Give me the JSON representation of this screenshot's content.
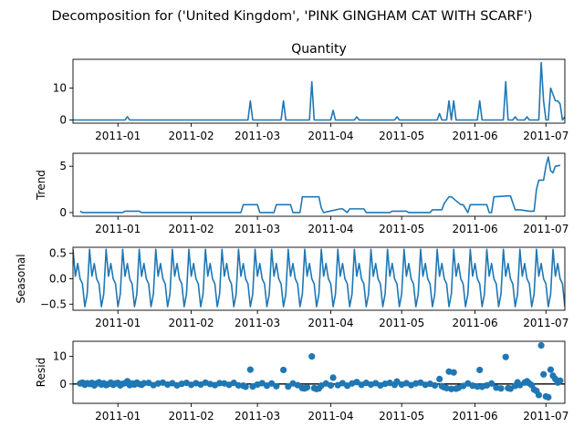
{
  "suptitle": "Decomposition for ('United Kingdom', 'PINK GINGHAM CAT WITH SCARF')",
  "line_color": "#1f77b4",
  "x_range": [
    "2010-12-13",
    "2011-07-09"
  ],
  "x_ticks": [
    {
      "date": "2011-01-01",
      "label": "2011-01"
    },
    {
      "date": "2011-02-01",
      "label": "2011-02"
    },
    {
      "date": "2011-03-01",
      "label": "2011-03"
    },
    {
      "date": "2011-04-01",
      "label": "2011-04"
    },
    {
      "date": "2011-05-01",
      "label": "2011-05"
    },
    {
      "date": "2011-06-01",
      "label": "2011-06"
    },
    {
      "date": "2011-07-01",
      "label": "2011-07"
    }
  ],
  "chart_data": [
    {
      "type": "line",
      "title": "Quantity",
      "ylabel": "",
      "ylim": [
        -1,
        19
      ],
      "yticks": [
        0,
        10
      ],
      "segments": [
        {
          "x": [
            "2010-12-13",
            "2011-01-04",
            "2011-01-05",
            "2011-01-06",
            "2011-02-25",
            "2011-02-26",
            "2011-02-27",
            "2011-03-11",
            "2011-03-12",
            "2011-03-13",
            "2011-03-23",
            "2011-03-24",
            "2011-03-25",
            "2011-04-01",
            "2011-04-02",
            "2011-04-03",
            "2011-04-11",
            "2011-04-12",
            "2011-04-13",
            "2011-04-28",
            "2011-04-29",
            "2011-04-30",
            "2011-05-16",
            "2011-05-17",
            "2011-05-18",
            "2011-05-20",
            "2011-05-21",
            "2011-05-22",
            "2011-05-23",
            "2011-05-24",
            "2011-05-25",
            "2011-06-02",
            "2011-06-03",
            "2011-06-04",
            "2011-06-13",
            "2011-06-14",
            "2011-06-15",
            "2011-06-17",
            "2011-06-18",
            "2011-06-19",
            "2011-06-22",
            "2011-06-23",
            "2011-06-24",
            "2011-06-28",
            "2011-06-29",
            "2011-06-30",
            "2011-07-01",
            "2011-07-02",
            "2011-07-03",
            "2011-07-04",
            "2011-07-05",
            "2011-07-06",
            "2011-07-07",
            "2011-07-08",
            "2011-07-09"
          ],
          "y": [
            0,
            0,
            1,
            0,
            0,
            6,
            0,
            0,
            6,
            0,
            0,
            12,
            0,
            0,
            3,
            0,
            0,
            1,
            0,
            0,
            1,
            0,
            0,
            2,
            0,
            0,
            6,
            0,
            6,
            0,
            0,
            0,
            6,
            0,
            0,
            12,
            0,
            0,
            1,
            0,
            0,
            1,
            0,
            0,
            18,
            6,
            0,
            0,
            10,
            8,
            6,
            6,
            5,
            0,
            1
          ]
        }
      ]
    },
    {
      "type": "line",
      "title": "",
      "ylabel": "Trend",
      "ylim": [
        -0.4,
        6.4
      ],
      "yticks": [
        0,
        5
      ],
      "segments": [
        {
          "x": [
            "2010-12-16",
            "2010-12-17",
            "2011-01-03",
            "2011-01-04",
            "2011-01-10",
            "2011-01-11",
            "2011-02-22",
            "2011-02-23",
            "2011-03-01",
            "2011-03-02",
            "2011-03-08",
            "2011-03-09",
            "2011-03-15",
            "2011-03-16",
            "2011-03-19",
            "2011-03-20",
            "2011-03-27",
            "2011-03-28",
            "2011-03-29",
            "2011-04-05",
            "2011-04-06",
            "2011-04-08",
            "2011-04-09",
            "2011-04-15",
            "2011-04-16",
            "2011-04-26",
            "2011-04-27",
            "2011-05-03",
            "2011-05-04",
            "2011-05-13",
            "2011-05-14",
            "2011-05-18",
            "2011-05-19",
            "2011-05-21",
            "2011-05-22",
            "2011-05-26",
            "2011-05-27",
            "2011-05-29",
            "2011-05-30",
            "2011-06-06",
            "2011-06-07",
            "2011-06-08",
            "2011-06-09",
            "2011-06-15",
            "2011-06-16",
            "2011-06-18",
            "2011-06-20",
            "2011-06-24",
            "2011-06-25",
            "2011-06-26",
            "2011-06-27",
            "2011-06-28",
            "2011-06-29",
            "2011-06-30",
            "2011-07-01",
            "2011-07-02",
            "2011-07-03",
            "2011-07-04",
            "2011-07-05",
            "2011-07-07"
          ],
          "y": [
            0.15,
            0,
            0,
            0.15,
            0.15,
            0,
            0,
            0.85,
            0.85,
            0,
            0,
            0.85,
            0.85,
            0,
            0,
            1.7,
            1.7,
            0.5,
            0,
            0.4,
            0.4,
            0,
            0.4,
            0.4,
            0,
            0,
            0.15,
            0.15,
            0,
            0,
            0.3,
            0.3,
            1.0,
            1.7,
            1.7,
            0.85,
            0.85,
            0,
            0.85,
            0.85,
            0,
            0,
            1.7,
            1.8,
            1.8,
            0.3,
            0.3,
            0.15,
            0.15,
            0.15,
            2.5,
            3.5,
            3.5,
            3.5,
            5.0,
            6.0,
            4.5,
            4.3,
            5.0,
            5.1
          ]
        }
      ]
    },
    {
      "type": "line",
      "title": "",
      "ylabel": "Seasonal",
      "ylim": [
        -0.62,
        0.62
      ],
      "yticks": [
        -0.5,
        0.0,
        0.5
      ],
      "ytick_labels": [
        "−0.5",
        "0.0",
        "0.5"
      ],
      "seasonal_pattern": [
        0.58,
        0.05,
        0.3,
        0.0,
        -0.1,
        -0.55,
        -0.3
      ],
      "seasonal_start": "2010-12-13",
      "seasonal_end": "2011-07-09"
    },
    {
      "type": "scatter",
      "title": "",
      "ylabel": "Resid",
      "ylim": [
        -7,
        15.5
      ],
      "yticks": [
        0,
        10
      ],
      "zero_line": true,
      "points": [
        {
          "x": "2010-12-16",
          "y": 0.2
        },
        {
          "x": "2010-12-17",
          "y": 0.5
        },
        {
          "x": "2010-12-18",
          "y": -0.3
        },
        {
          "x": "2010-12-19",
          "y": 0.3
        },
        {
          "x": "2010-12-20",
          "y": 0.0
        },
        {
          "x": "2010-12-21",
          "y": 0.4
        },
        {
          "x": "2010-12-22",
          "y": -0.5
        },
        {
          "x": "2010-12-23",
          "y": 0.2
        },
        {
          "x": "2010-12-24",
          "y": 0.6
        },
        {
          "x": "2010-12-25",
          "y": -0.2
        },
        {
          "x": "2010-12-26",
          "y": 0.3
        },
        {
          "x": "2010-12-27",
          "y": -0.4
        },
        {
          "x": "2010-12-28",
          "y": 0.0
        },
        {
          "x": "2010-12-29",
          "y": 0.5
        },
        {
          "x": "2010-12-30",
          "y": -0.3
        },
        {
          "x": "2010-12-31",
          "y": 0.2
        },
        {
          "x": "2011-01-01",
          "y": 0.4
        },
        {
          "x": "2011-01-02",
          "y": -0.5
        },
        {
          "x": "2011-01-03",
          "y": 0.1
        },
        {
          "x": "2011-01-04",
          "y": 0.3
        },
        {
          "x": "2011-01-05",
          "y": 1.0
        },
        {
          "x": "2011-01-06",
          "y": -0.4
        },
        {
          "x": "2011-01-07",
          "y": 0.2
        },
        {
          "x": "2011-01-08",
          "y": -0.2
        },
        {
          "x": "2011-01-09",
          "y": 0.5
        },
        {
          "x": "2011-01-10",
          "y": 0.0
        },
        {
          "x": "2011-01-11",
          "y": -0.3
        },
        {
          "x": "2011-01-12",
          "y": 0.3
        },
        {
          "x": "2011-01-14",
          "y": 0.4
        },
        {
          "x": "2011-01-16",
          "y": -0.4
        },
        {
          "x": "2011-01-18",
          "y": 0.2
        },
        {
          "x": "2011-01-20",
          "y": 0.5
        },
        {
          "x": "2011-01-22",
          "y": -0.2
        },
        {
          "x": "2011-01-24",
          "y": 0.3
        },
        {
          "x": "2011-01-26",
          "y": -0.5
        },
        {
          "x": "2011-01-28",
          "y": 0.1
        },
        {
          "x": "2011-01-30",
          "y": 0.4
        },
        {
          "x": "2011-02-01",
          "y": -0.3
        },
        {
          "x": "2011-02-03",
          "y": 0.3
        },
        {
          "x": "2011-02-05",
          "y": -0.2
        },
        {
          "x": "2011-02-07",
          "y": 0.5
        },
        {
          "x": "2011-02-09",
          "y": 0.0
        },
        {
          "x": "2011-02-11",
          "y": -0.4
        },
        {
          "x": "2011-02-13",
          "y": 0.3
        },
        {
          "x": "2011-02-15",
          "y": 0.2
        },
        {
          "x": "2011-02-17",
          "y": -0.3
        },
        {
          "x": "2011-02-19",
          "y": 0.4
        },
        {
          "x": "2011-02-21",
          "y": -0.5
        },
        {
          "x": "2011-02-23",
          "y": -0.6
        },
        {
          "x": "2011-02-24",
          "y": -1.0
        },
        {
          "x": "2011-02-26",
          "y": 5.2
        },
        {
          "x": "2011-02-27",
          "y": -0.9
        },
        {
          "x": "2011-03-01",
          "y": -0.2
        },
        {
          "x": "2011-03-03",
          "y": 0.3
        },
        {
          "x": "2011-03-05",
          "y": -0.6
        },
        {
          "x": "2011-03-07",
          "y": 0.2
        },
        {
          "x": "2011-03-09",
          "y": -0.8
        },
        {
          "x": "2011-03-12",
          "y": 5.1
        },
        {
          "x": "2011-03-14",
          "y": -0.9
        },
        {
          "x": "2011-03-16",
          "y": 0.2
        },
        {
          "x": "2011-03-18",
          "y": -0.4
        },
        {
          "x": "2011-03-20",
          "y": -1.5
        },
        {
          "x": "2011-03-21",
          "y": -1.6
        },
        {
          "x": "2011-03-22",
          "y": -1.2
        },
        {
          "x": "2011-03-24",
          "y": 10.0
        },
        {
          "x": "2011-03-25",
          "y": -1.5
        },
        {
          "x": "2011-03-26",
          "y": -1.8
        },
        {
          "x": "2011-03-27",
          "y": -1.6
        },
        {
          "x": "2011-03-28",
          "y": -0.6
        },
        {
          "x": "2011-03-30",
          "y": 0.2
        },
        {
          "x": "2011-04-01",
          "y": -0.5
        },
        {
          "x": "2011-04-02",
          "y": 2.3
        },
        {
          "x": "2011-04-04",
          "y": -0.4
        },
        {
          "x": "2011-04-06",
          "y": 0.3
        },
        {
          "x": "2011-04-08",
          "y": -0.6
        },
        {
          "x": "2011-04-10",
          "y": 0.2
        },
        {
          "x": "2011-04-12",
          "y": 0.7
        },
        {
          "x": "2011-04-14",
          "y": -0.3
        },
        {
          "x": "2011-04-16",
          "y": 0.4
        },
        {
          "x": "2011-04-18",
          "y": -0.2
        },
        {
          "x": "2011-04-20",
          "y": 0.3
        },
        {
          "x": "2011-04-22",
          "y": -0.5
        },
        {
          "x": "2011-04-24",
          "y": 0.1
        },
        {
          "x": "2011-04-26",
          "y": 0.4
        },
        {
          "x": "2011-04-28",
          "y": -0.3
        },
        {
          "x": "2011-04-29",
          "y": 0.9
        },
        {
          "x": "2011-05-01",
          "y": -0.2
        },
        {
          "x": "2011-05-03",
          "y": 0.3
        },
        {
          "x": "2011-05-05",
          "y": -0.4
        },
        {
          "x": "2011-05-07",
          "y": 0.2
        },
        {
          "x": "2011-05-09",
          "y": 0.5
        },
        {
          "x": "2011-05-11",
          "y": -0.3
        },
        {
          "x": "2011-05-13",
          "y": 0.1
        },
        {
          "x": "2011-05-15",
          "y": -0.5
        },
        {
          "x": "2011-05-17",
          "y": 1.8
        },
        {
          "x": "2011-05-18",
          "y": -0.8
        },
        {
          "x": "2011-05-19",
          "y": -1.2
        },
        {
          "x": "2011-05-20",
          "y": -1.5
        },
        {
          "x": "2011-05-21",
          "y": 4.5
        },
        {
          "x": "2011-05-22",
          "y": -1.8
        },
        {
          "x": "2011-05-23",
          "y": 4.2
        },
        {
          "x": "2011-05-24",
          "y": -1.7
        },
        {
          "x": "2011-05-25",
          "y": -1.4
        },
        {
          "x": "2011-05-27",
          "y": -0.7
        },
        {
          "x": "2011-05-29",
          "y": 0.2
        },
        {
          "x": "2011-05-31",
          "y": -0.6
        },
        {
          "x": "2011-06-02",
          "y": -0.9
        },
        {
          "x": "2011-06-03",
          "y": 5.1
        },
        {
          "x": "2011-06-04",
          "y": -1.0
        },
        {
          "x": "2011-06-06",
          "y": -0.5
        },
        {
          "x": "2011-06-08",
          "y": 0.2
        },
        {
          "x": "2011-06-10",
          "y": -1.3
        },
        {
          "x": "2011-06-12",
          "y": -1.6
        },
        {
          "x": "2011-06-14",
          "y": 9.8
        },
        {
          "x": "2011-06-15",
          "y": -1.5
        },
        {
          "x": "2011-06-16",
          "y": -1.7
        },
        {
          "x": "2011-06-18",
          "y": -0.7
        },
        {
          "x": "2011-06-19",
          "y": 0.6
        },
        {
          "x": "2011-06-20",
          "y": -0.4
        },
        {
          "x": "2011-06-22",
          "y": 0.5
        },
        {
          "x": "2011-06-23",
          "y": 1.0
        },
        {
          "x": "2011-06-24",
          "y": 0.2
        },
        {
          "x": "2011-06-25",
          "y": -0.4
        },
        {
          "x": "2011-06-26",
          "y": -2.0
        },
        {
          "x": "2011-06-27",
          "y": -2.5
        },
        {
          "x": "2011-06-28",
          "y": -4.0
        },
        {
          "x": "2011-06-29",
          "y": 14.0
        },
        {
          "x": "2011-06-30",
          "y": 3.5
        },
        {
          "x": "2011-07-01",
          "y": -4.5
        },
        {
          "x": "2011-07-02",
          "y": -4.8
        },
        {
          "x": "2011-07-03",
          "y": 5.2
        },
        {
          "x": "2011-07-04",
          "y": 3.0
        },
        {
          "x": "2011-07-05",
          "y": 1.8
        },
        {
          "x": "2011-07-06",
          "y": 0.5
        },
        {
          "x": "2011-07-07",
          "y": 1.2
        }
      ]
    }
  ]
}
